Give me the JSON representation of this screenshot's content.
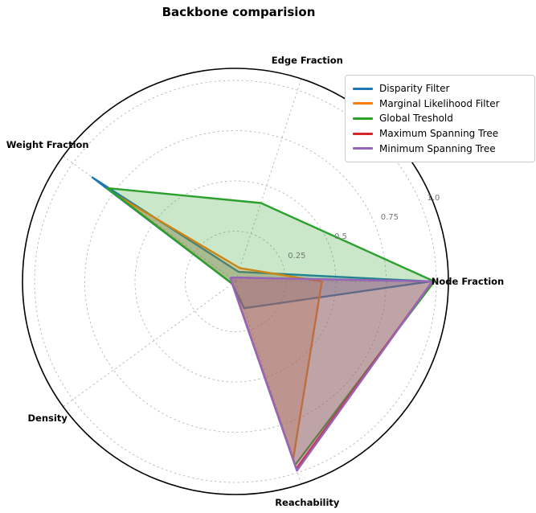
{
  "title": "Backbone comparision",
  "chart_data": {
    "type": "radar",
    "axes": [
      "Node Fraction",
      "Edge Fraction",
      "Weight Fraction",
      "Density",
      "Reachability"
    ],
    "axis_angles_deg": [
      0,
      72,
      144,
      216,
      288
    ],
    "radial_ticks": [
      0.25,
      0.5,
      0.75,
      1.0
    ],
    "radial_tick_labels": [
      "0.25",
      "0.5",
      "0.75",
      "1.0"
    ],
    "rmax": 1.06,
    "rlabel_angle_deg": 22.5,
    "grid": true,
    "legend_position": "upper right",
    "fill_opacity": 0.25,
    "series": [
      {
        "name": "Disparity Filter",
        "color": "#1f77b4",
        "values": [
          0.97,
          0.05,
          0.88,
          0.02,
          0.14
        ]
      },
      {
        "name": "Marginal Likelihood Filter",
        "color": "#ff7f0e",
        "values": [
          0.43,
          0.07,
          0.72,
          0.02,
          0.93
        ]
      },
      {
        "name": "Global Treshold",
        "color": "#2ca02c",
        "values": [
          0.99,
          0.41,
          0.79,
          0.02,
          0.96
        ]
      },
      {
        "name": "Maximum Spanning Tree",
        "color": "#d62728",
        "values": [
          0.98,
          0.02,
          0.03,
          0.02,
          0.98
        ]
      },
      {
        "name": "Minimum Spanning Tree",
        "color": "#9467bd",
        "values": [
          0.98,
          0.02,
          0.03,
          0.02,
          0.99
        ]
      }
    ]
  },
  "colors": {
    "background": "#ffffff",
    "grid": "#b0b0b0",
    "outer_circle": "#000000",
    "axis_label": "#000000",
    "tick_label": "#767676",
    "legend_border": "#cccccc"
  }
}
